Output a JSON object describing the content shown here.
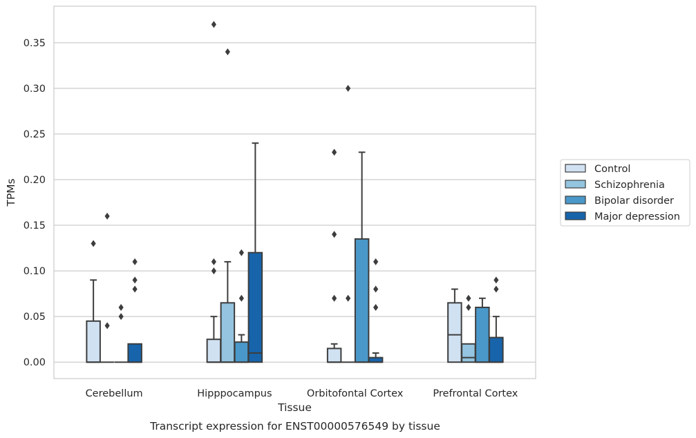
{
  "chart_data": {
    "type": "box",
    "title": "",
    "caption": "Transcript expression for ENST00000576549 by tissue",
    "xlabel": "Tissue",
    "ylabel": "TPMs",
    "ylim": [
      -0.018,
      0.39
    ],
    "yticks": [
      0.0,
      0.05,
      0.1,
      0.15,
      0.2,
      0.25,
      0.3,
      0.35
    ],
    "ytick_labels": [
      "0.00",
      "0.05",
      "0.10",
      "0.15",
      "0.20",
      "0.25",
      "0.30",
      "0.35"
    ],
    "grid": "horizontal",
    "legend_position": "right",
    "categories": [
      "Cerebellum",
      "Hipppocampus",
      "Orbitofontal Cortex",
      "Prefrontal Cortex"
    ],
    "series": [
      {
        "name": "Control",
        "color": "#d0e1f2",
        "boxes": [
          {
            "q1": 0.0,
            "median": 0.0,
            "q3": 0.045,
            "whisker_low": 0.0,
            "whisker_high": 0.09,
            "outliers": [
              0.13
            ]
          },
          {
            "q1": 0.0,
            "median": 0.0,
            "q3": 0.025,
            "whisker_low": 0.0,
            "whisker_high": 0.05,
            "outliers": [
              0.1,
              0.11,
              0.37
            ]
          },
          {
            "q1": 0.0,
            "median": 0.0,
            "q3": 0.015,
            "whisker_low": 0.0,
            "whisker_high": 0.02,
            "outliers": [
              0.07,
              0.14,
              0.23
            ]
          },
          {
            "q1": 0.0,
            "median": 0.03,
            "q3": 0.065,
            "whisker_low": 0.0,
            "whisker_high": 0.08,
            "outliers": []
          }
        ]
      },
      {
        "name": "Schizophrenia",
        "color": "#94c4df",
        "boxes": [
          {
            "q1": 0.0,
            "median": 0.0,
            "q3": 0.0,
            "whisker_low": 0.0,
            "whisker_high": 0.0,
            "outliers": [
              0.04,
              0.16
            ]
          },
          {
            "q1": 0.0,
            "median": 0.0,
            "q3": 0.065,
            "whisker_low": 0.0,
            "whisker_high": 0.11,
            "outliers": [
              0.34
            ]
          },
          {
            "q1": 0.0,
            "median": 0.0,
            "q3": 0.0,
            "whisker_low": 0.0,
            "whisker_high": 0.0,
            "outliers": [
              0.07,
              0.3
            ]
          },
          {
            "q1": 0.0,
            "median": 0.005,
            "q3": 0.02,
            "whisker_low": 0.0,
            "whisker_high": 0.02,
            "outliers": [
              0.06,
              0.07
            ]
          }
        ]
      },
      {
        "name": "Bipolar disorder",
        "color": "#4a98c9",
        "boxes": [
          {
            "q1": 0.0,
            "median": 0.0,
            "q3": 0.0,
            "whisker_low": 0.0,
            "whisker_high": 0.0,
            "outliers": [
              0.05,
              0.06
            ]
          },
          {
            "q1": 0.0,
            "median": 0.0,
            "q3": 0.022,
            "whisker_low": 0.0,
            "whisker_high": 0.03,
            "outliers": [
              0.07,
              0.12
            ]
          },
          {
            "q1": 0.0,
            "median": 0.0,
            "q3": 0.135,
            "whisker_low": 0.0,
            "whisker_high": 0.23,
            "outliers": []
          },
          {
            "q1": 0.0,
            "median": 0.0,
            "q3": 0.06,
            "whisker_low": 0.0,
            "whisker_high": 0.07,
            "outliers": []
          }
        ]
      },
      {
        "name": "Major depression",
        "color": "#1764ab",
        "boxes": [
          {
            "q1": 0.0,
            "median": 0.0,
            "q3": 0.02,
            "whisker_low": 0.0,
            "whisker_high": 0.02,
            "outliers": [
              0.08,
              0.09,
              0.11
            ]
          },
          {
            "q1": 0.0,
            "median": 0.01,
            "q3": 0.12,
            "whisker_low": 0.0,
            "whisker_high": 0.24,
            "outliers": []
          },
          {
            "q1": 0.0,
            "median": 0.0,
            "q3": 0.005,
            "whisker_low": 0.0,
            "whisker_high": 0.01,
            "outliers": [
              0.06,
              0.08,
              0.11
            ]
          },
          {
            "q1": 0.0,
            "median": 0.0,
            "q3": 0.027,
            "whisker_low": 0.0,
            "whisker_high": 0.05,
            "outliers": [
              0.08,
              0.09
            ]
          }
        ]
      }
    ]
  }
}
